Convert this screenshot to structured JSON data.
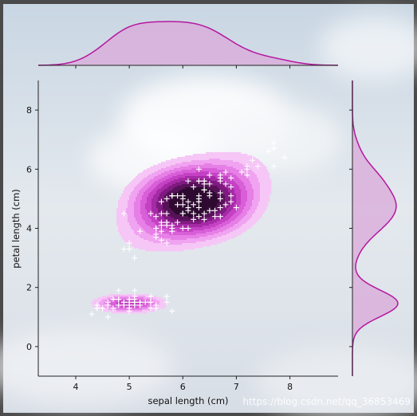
{
  "chart_data": {
    "type": "joint-kde-scatter",
    "title": "",
    "xlabel": "sepal length (cm)",
    "ylabel": "petal length (cm)",
    "xlim": [
      3.3,
      8.9
    ],
    "ylim": [
      -1.0,
      9.0
    ],
    "x_ticks": [
      4,
      5,
      6,
      7,
      8
    ],
    "y_ticks": [
      0,
      2,
      4,
      6,
      8
    ],
    "grid": false,
    "legend": "none",
    "marker": "+",
    "marker_color": "#ffffff",
    "kde_color": "#b5179e",
    "marginal_fill": "#d9a8d9",
    "background": "cloudy-sky",
    "clusters": [
      {
        "name": "",
        "center": [
          5.0,
          1.46
        ],
        "spread": [
          0.35,
          0.17
        ],
        "weight": 0.34
      },
      {
        "name": "",
        "center": [
          6.2,
          4.9
        ],
        "spread": [
          0.55,
          0.6
        ],
        "weight": 0.66
      }
    ],
    "points": [
      [
        5.1,
        1.4
      ],
      [
        4.9,
        1.4
      ],
      [
        4.7,
        1.3
      ],
      [
        4.6,
        1.5
      ],
      [
        5.0,
        1.4
      ],
      [
        5.4,
        1.7
      ],
      [
        4.6,
        1.4
      ],
      [
        5.0,
        1.5
      ],
      [
        4.4,
        1.4
      ],
      [
        4.9,
        1.5
      ],
      [
        5.4,
        1.5
      ],
      [
        4.8,
        1.6
      ],
      [
        4.8,
        1.4
      ],
      [
        4.3,
        1.1
      ],
      [
        5.8,
        1.2
      ],
      [
        5.7,
        1.5
      ],
      [
        5.4,
        1.3
      ],
      [
        5.1,
        1.4
      ],
      [
        5.7,
        1.7
      ],
      [
        5.1,
        1.5
      ],
      [
        5.4,
        1.7
      ],
      [
        5.1,
        1.5
      ],
      [
        4.6,
        1.0
      ],
      [
        5.1,
        1.7
      ],
      [
        4.8,
        1.9
      ],
      [
        5.0,
        1.6
      ],
      [
        5.0,
        1.6
      ],
      [
        5.2,
        1.5
      ],
      [
        5.2,
        1.4
      ],
      [
        4.7,
        1.6
      ],
      [
        4.8,
        1.6
      ],
      [
        5.4,
        1.5
      ],
      [
        5.2,
        1.5
      ],
      [
        5.5,
        1.4
      ],
      [
        4.9,
        1.5
      ],
      [
        5.0,
        1.2
      ],
      [
        5.5,
        1.3
      ],
      [
        4.9,
        1.4
      ],
      [
        4.4,
        1.3
      ],
      [
        5.1,
        1.5
      ],
      [
        5.0,
        1.3
      ],
      [
        4.5,
        1.3
      ],
      [
        4.4,
        1.3
      ],
      [
        5.0,
        1.6
      ],
      [
        5.1,
        1.9
      ],
      [
        4.8,
        1.4
      ],
      [
        5.1,
        1.6
      ],
      [
        4.6,
        1.4
      ],
      [
        5.3,
        1.5
      ],
      [
        5.0,
        1.4
      ],
      [
        7.0,
        4.7
      ],
      [
        6.4,
        4.5
      ],
      [
        6.9,
        4.9
      ],
      [
        5.5,
        4.0
      ],
      [
        6.5,
        4.6
      ],
      [
        5.7,
        4.5
      ],
      [
        6.3,
        4.7
      ],
      [
        4.9,
        3.3
      ],
      [
        6.6,
        4.6
      ],
      [
        5.2,
        3.9
      ],
      [
        5.0,
        3.5
      ],
      [
        5.9,
        4.2
      ],
      [
        6.0,
        4.0
      ],
      [
        6.1,
        4.7
      ],
      [
        5.6,
        3.6
      ],
      [
        6.7,
        4.4
      ],
      [
        5.6,
        4.5
      ],
      [
        5.8,
        4.1
      ],
      [
        6.2,
        4.5
      ],
      [
        5.6,
        3.9
      ],
      [
        5.9,
        4.8
      ],
      [
        6.1,
        4.0
      ],
      [
        6.3,
        4.9
      ],
      [
        6.1,
        4.7
      ],
      [
        6.4,
        4.3
      ],
      [
        6.6,
        4.4
      ],
      [
        6.8,
        4.8
      ],
      [
        6.7,
        5.0
      ],
      [
        6.0,
        4.5
      ],
      [
        5.7,
        3.5
      ],
      [
        5.5,
        3.8
      ],
      [
        5.5,
        3.7
      ],
      [
        5.8,
        3.9
      ],
      [
        6.0,
        5.1
      ],
      [
        5.4,
        4.5
      ],
      [
        6.0,
        4.5
      ],
      [
        6.7,
        4.7
      ],
      [
        6.3,
        4.4
      ],
      [
        5.6,
        4.1
      ],
      [
        5.5,
        4.0
      ],
      [
        5.5,
        4.4
      ],
      [
        6.1,
        4.6
      ],
      [
        5.8,
        4.0
      ],
      [
        5.0,
        3.3
      ],
      [
        5.6,
        4.2
      ],
      [
        5.7,
        4.2
      ],
      [
        5.7,
        4.2
      ],
      [
        6.2,
        4.3
      ],
      [
        5.1,
        3.0
      ],
      [
        5.7,
        4.1
      ],
      [
        6.3,
        6.0
      ],
      [
        5.8,
        5.1
      ],
      [
        7.1,
        5.9
      ],
      [
        6.3,
        5.6
      ],
      [
        6.5,
        5.8
      ],
      [
        7.6,
        6.6
      ],
      [
        4.9,
        4.5
      ],
      [
        7.3,
        6.3
      ],
      [
        6.7,
        5.8
      ],
      [
        7.2,
        6.1
      ],
      [
        6.5,
        5.1
      ],
      [
        6.4,
        5.3
      ],
      [
        6.8,
        5.5
      ],
      [
        5.7,
        5.0
      ],
      [
        5.8,
        5.1
      ],
      [
        6.4,
        5.3
      ],
      [
        6.5,
        5.5
      ],
      [
        7.7,
        6.7
      ],
      [
        7.7,
        6.9
      ],
      [
        6.0,
        5.0
      ],
      [
        6.9,
        5.7
      ],
      [
        5.6,
        4.9
      ],
      [
        7.7,
        6.7
      ],
      [
        6.3,
        4.9
      ],
      [
        6.7,
        5.7
      ],
      [
        7.2,
        6.0
      ],
      [
        6.2,
        4.8
      ],
      [
        6.1,
        4.9
      ],
      [
        6.4,
        5.6
      ],
      [
        7.2,
        5.8
      ],
      [
        7.4,
        6.1
      ],
      [
        7.9,
        6.4
      ],
      [
        6.4,
        5.6
      ],
      [
        6.3,
        5.1
      ],
      [
        6.1,
        5.6
      ],
      [
        7.7,
        6.1
      ],
      [
        6.3,
        5.6
      ],
      [
        6.4,
        5.5
      ],
      [
        6.0,
        4.8
      ],
      [
        6.9,
        5.4
      ],
      [
        6.7,
        5.6
      ],
      [
        6.9,
        5.1
      ],
      [
        5.8,
        5.1
      ],
      [
        6.8,
        5.9
      ],
      [
        6.7,
        5.7
      ],
      [
        6.7,
        5.2
      ],
      [
        6.3,
        5.0
      ],
      [
        6.5,
        5.2
      ],
      [
        6.2,
        5.4
      ],
      [
        5.9,
        5.1
      ]
    ]
  },
  "watermark": "https://blog.csdn.net/qq_36853469"
}
